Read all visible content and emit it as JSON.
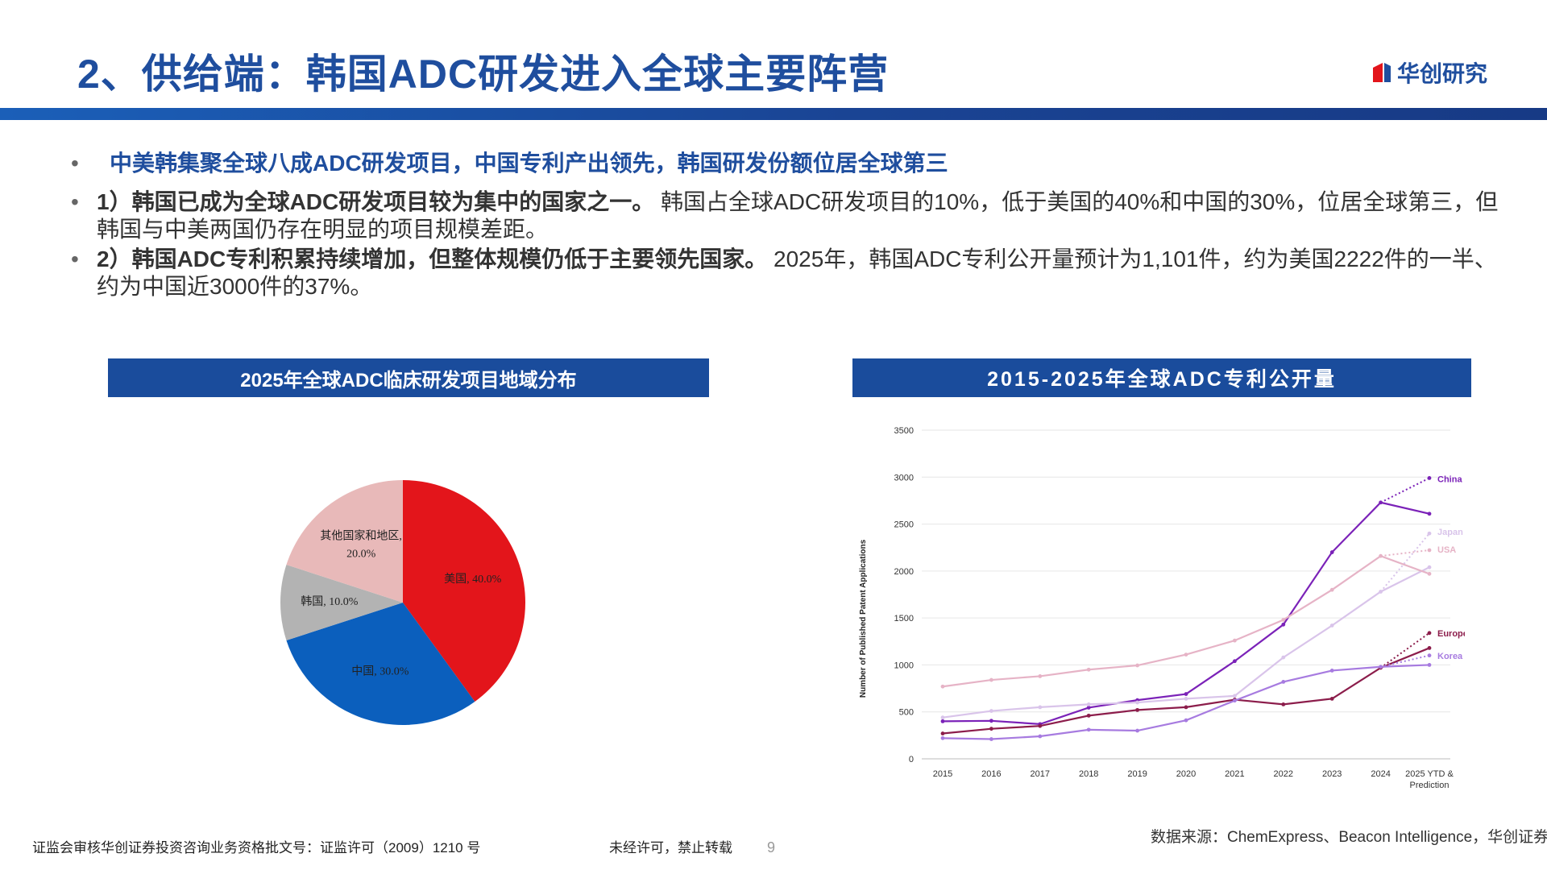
{
  "header": {
    "title": "2、供给端：韩国ADC研发进入全球主要阵营",
    "logo_text": "华创研究"
  },
  "bullets": [
    {
      "marker": "•",
      "text": "中美韩集聚全球八成ADC研发项目，中国专利产出领先，韩国研发份额位居全球第三"
    },
    {
      "marker": "•",
      "bold": "1）韩国已成为全球ADC研发项目较为集中的国家之一。",
      "text": " 韩国占全球ADC研发项目的10%，低于美国的40%和中国的30%，位居全球第三，但韩国与中美两国仍存在明显的项目规模差距。"
    },
    {
      "marker": "•",
      "bold": "2）韩国ADC专利积累持续增加，但整体规模仍低于主要领先国家。",
      "text": " 2025年，韩国ADC专利公开量预计为1,101件，约为美国2222件的一半、约为中国近3000件的37%。"
    }
  ],
  "left_panel": {
    "title": "2025年全球ADC临床研发项目地域分布"
  },
  "right_panel": {
    "title": "2015-2025年全球ADC专利公开量"
  },
  "chart_data": [
    {
      "type": "pie",
      "title": "2025年全球ADC临床研发项目地域分布",
      "slices": [
        {
          "label": "美国, 40.0%",
          "value": 40.0,
          "color": "#e3151b"
        },
        {
          "label": "中国, 30.0%",
          "value": 30.0,
          "color": "#0b5fbd"
        },
        {
          "label": "韩国, 10.0%",
          "value": 10.0,
          "color": "#b3b3b3"
        },
        {
          "label_lines": [
            "其他国家和地区,",
            "20.0%"
          ],
          "value": 20.0,
          "color": "#e8b9b9"
        }
      ]
    },
    {
      "type": "line",
      "title": "2015-2025年全球ADC专利公开量",
      "ylabel": "Number of Published Patent Applications",
      "xlabel": "",
      "categories": [
        "2015",
        "2016",
        "2017",
        "2018",
        "2019",
        "2020",
        "2021",
        "2022",
        "2023",
        "2024"
      ],
      "last_category": [
        "2025 YTD &",
        "Prediction"
      ],
      "ylim": [
        0,
        3500
      ],
      "yticks": [
        0,
        500,
        1000,
        1500,
        2000,
        2500,
        3000,
        3500
      ],
      "grid": true,
      "series": [
        {
          "name": "China",
          "color": "#7b22b8",
          "values": [
            400,
            405,
            370,
            545,
            625,
            690,
            1040,
            1430,
            2200,
            2730
          ],
          "ytd": 2610,
          "prediction": 2990,
          "legend_y": 2980
        },
        {
          "name": "Japan",
          "color": "#d9c4ea",
          "values": [
            440,
            510,
            550,
            580,
            600,
            640,
            670,
            1080,
            1420,
            1780
          ],
          "ytd": 2040,
          "prediction": 2400,
          "legend_y": 2420
        },
        {
          "name": "USA",
          "color": "#e6b3c6",
          "values": [
            770,
            840,
            880,
            950,
            995,
            1110,
            1260,
            1480,
            1800,
            2160
          ],
          "ytd": 1970,
          "prediction": 2222,
          "legend_y": 2230
        },
        {
          "name": "Europe",
          "color": "#8c1d4b",
          "values": [
            270,
            320,
            350,
            460,
            520,
            550,
            630,
            580,
            640,
            970
          ],
          "ytd": 1180,
          "prediction": 1340,
          "legend_y": 1340
        },
        {
          "name": "Korea",
          "color": "#a77be0",
          "values": [
            220,
            210,
            240,
            310,
            300,
            410,
            620,
            820,
            940,
            980
          ],
          "ytd": 1000,
          "prediction": 1101,
          "legend_y": 1100
        }
      ]
    }
  ],
  "footer": {
    "license": "证监会审核华创证券投资咨询业务资格批文号：证监许可（2009）1210 号",
    "notice": "未经许可，禁止转载",
    "page": "9",
    "source": "数据来源：ChemExpress、Beacon Intelligence，华创证券"
  }
}
